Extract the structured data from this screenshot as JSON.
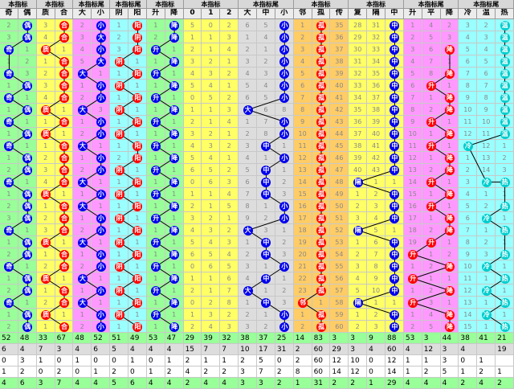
{
  "groups": [
    {
      "title": "本指标",
      "cols": [
        "奇",
        "偶"
      ]
    },
    {
      "title": "本指标",
      "cols": [
        "质",
        "合"
      ]
    },
    {
      "title": "本指标尾",
      "cols": [
        "大",
        "小"
      ]
    },
    {
      "title": "本指标尾",
      "cols": [
        "阴",
        "阳"
      ]
    },
    {
      "title": "本指标",
      "cols": [
        "升",
        "降"
      ]
    },
    {
      "title": "本指标",
      "cols": [
        "0",
        "1",
        "2"
      ]
    },
    {
      "title": "本指标尾",
      "cols": [
        "大",
        "中",
        "小"
      ]
    },
    {
      "title": "本指标",
      "cols": [
        "邻",
        "孤",
        "传"
      ]
    },
    {
      "title": "本指标",
      "cols": [
        "复",
        "隔",
        "中"
      ]
    },
    {
      "title": "本指标尾",
      "cols": [
        "升",
        "平",
        "降"
      ]
    },
    {
      "title": "本指标尾",
      "cols": [
        "冷",
        "温",
        "热"
      ]
    }
  ],
  "colors": {
    "green": "#99ff99",
    "yellow": "#ffff66",
    "pink": "#ff99ff",
    "cyan": "#99ffff",
    "gray": "#dddddd",
    "orange": "#ffcc66",
    "ball_blue": "#0000ee",
    "ball_red": "#ff0000",
    "ball_orange": "#ff6600",
    "ball_cyan": "#00cccc",
    "line": "#000000"
  },
  "footer_rows": [
    [
      "52",
      "48",
      "33",
      "67",
      "48",
      "52",
      "51",
      "49",
      "53",
      "47",
      "29",
      "39",
      "32",
      "38",
      "37",
      "25",
      "14",
      "83",
      "3",
      "3",
      "9",
      "88",
      "53",
      "3",
      "44",
      "38",
      "41",
      "21"
    ],
    [
      "6",
      "4",
      "7",
      "3",
      "4",
      "6",
      "5",
      "4",
      "4",
      "4",
      "15",
      "7",
      "7",
      "10",
      "17",
      "31",
      "2",
      "60",
      "29",
      "3",
      "4",
      "60",
      "4",
      "12",
      "3",
      "4",
      "",
      "19"
    ],
    [
      "0",
      "3",
      "1",
      "0",
      "1",
      "0",
      "0",
      "1",
      "0",
      "1",
      "2",
      "1",
      "1",
      "2",
      "5",
      "0",
      "2",
      "60",
      "12",
      "10",
      "0",
      "12",
      "1",
      "1",
      "3",
      "0",
      "1",
      ""
    ],
    [
      "1",
      "2",
      "0",
      "2",
      "0",
      "1",
      "2",
      "0",
      "1",
      "2",
      "4",
      "2",
      "2",
      "3",
      "7",
      "2",
      "8",
      "60",
      "14",
      "12",
      "0",
      "14",
      "1",
      "2",
      "5",
      "1",
      "2",
      "1"
    ],
    [
      "4",
      "6",
      "3",
      "7",
      "4",
      "4",
      "5",
      "6",
      "4",
      "4",
      "2",
      "4",
      "4",
      "3",
      "3",
      "2",
      "1",
      "31",
      "2",
      "2",
      "1",
      "29",
      "4",
      "4",
      "4",
      "2",
      "4",
      "2"
    ]
  ],
  "rows": [
    {
      "v": [
        "2",
        "偶",
        "3",
        "合",
        "2",
        "小",
        "1",
        "阳",
        "1",
        "降",
        "5",
        "0",
        "2",
        "6",
        "5",
        "小",
        "1",
        "孤",
        "35",
        "28",
        "31",
        "中",
        "1",
        "4",
        "2",
        "3",
        "2",
        "温"
      ]
    },
    {
      "v": [
        "3",
        "偶",
        "4",
        "合",
        "3",
        "大",
        "2",
        "阴",
        "2",
        "降",
        "1",
        "1",
        "3",
        "1",
        "4",
        "小",
        "2",
        "孤",
        "36",
        "29",
        "32",
        "中",
        "2",
        "5",
        "3",
        "4",
        "3",
        "温"
      ]
    },
    {
      "v": [
        "奇",
        "1",
        "质",
        "1",
        "4",
        "小",
        "3",
        "阳",
        "升",
        "1",
        "2",
        "1",
        "4",
        "2",
        "1",
        "小",
        "3",
        "孤",
        "37",
        "30",
        "33",
        "中",
        "3",
        "6",
        "降",
        "5",
        "4",
        "温"
      ]
    },
    {
      "v": [
        "1",
        "2",
        "1",
        "合",
        "5",
        "大",
        "阴",
        "1",
        "1",
        "降",
        "3",
        "2",
        "1",
        "3",
        "2",
        "小",
        "4",
        "孤",
        "38",
        "31",
        "34",
        "中",
        "4",
        "7",
        "1",
        "6",
        "5",
        "温"
      ]
    },
    {
      "v": [
        "奇",
        "3",
        "2",
        "合",
        "大",
        "1",
        "1",
        "阳",
        "升",
        "1",
        "4",
        "3",
        "2",
        "4",
        "3",
        "小",
        "5",
        "孤",
        "39",
        "32",
        "35",
        "中",
        "5",
        "8",
        "降",
        "7",
        "6",
        "温"
      ]
    },
    {
      "v": [
        "1",
        "偶",
        "3",
        "合",
        "1",
        "小",
        "阴",
        "1",
        "1",
        "降",
        "5",
        "4",
        "1",
        "5",
        "4",
        "小",
        "6",
        "孤",
        "40",
        "33",
        "36",
        "中",
        "6",
        "升",
        "1",
        "8",
        "7",
        "温"
      ]
    },
    {
      "v": [
        "奇",
        "1",
        "4",
        "合",
        "2",
        "小",
        "1",
        "阳",
        "升",
        "1",
        "0",
        "5",
        "2",
        "6",
        "5",
        "小",
        "7",
        "孤",
        "41",
        "34",
        "37",
        "中",
        "7",
        "1",
        "降",
        "9",
        "8",
        "温"
      ]
    },
    {
      "v": [
        "1",
        "偶",
        "质",
        "1",
        "大",
        "3",
        "阴",
        "1",
        "1",
        "降",
        "1",
        "1",
        "3",
        "大",
        "6",
        "8",
        "8",
        "孤",
        "42",
        "35",
        "38",
        "中",
        "8",
        "2",
        "降",
        "10",
        "9",
        "温"
      ]
    },
    {
      "v": [
        "奇",
        "1",
        "1",
        "合",
        "1",
        "小",
        "1",
        "阳",
        "升",
        "1",
        "2",
        "1",
        "4",
        "1",
        "7",
        "小",
        "9",
        "孤",
        "43",
        "36",
        "39",
        "中",
        "9",
        "升",
        "1",
        "11",
        "10",
        "温"
      ]
    },
    {
      "v": [
        "1",
        "偶",
        "质",
        "1",
        "2",
        "小",
        "阴",
        "1",
        "1",
        "降",
        "3",
        "2",
        "1",
        "2",
        "8",
        "小",
        "10",
        "孤",
        "44",
        "37",
        "40",
        "中",
        "10",
        "1",
        "降",
        "12",
        "11",
        "温"
      ]
    },
    {
      "v": [
        "奇",
        "1",
        "1",
        "合",
        "大",
        "1",
        "1",
        "阳",
        "升",
        "1",
        "4",
        "3",
        "2",
        "3",
        "中",
        "1",
        "11",
        "孤",
        "45",
        "38",
        "41",
        "中",
        "11",
        "升",
        "1",
        "冷",
        "12",
        "1"
      ]
    },
    {
      "v": [
        "1",
        "偶",
        "2",
        "合",
        "1",
        "小",
        "2",
        "阳",
        "1",
        "降",
        "5",
        "4",
        "1",
        "4",
        "1",
        "小",
        "12",
        "孤",
        "46",
        "39",
        "42",
        "中",
        "12",
        "1",
        "降",
        "1",
        "13",
        "2"
      ]
    },
    {
      "v": [
        "2",
        "偶",
        "3",
        "合",
        "2",
        "小",
        "阴",
        "1",
        "升",
        "1",
        "6",
        "5",
        "2",
        "5",
        "中",
        "1",
        "13",
        "孤",
        "47",
        "40",
        "43",
        "中",
        "13",
        "2",
        "降",
        "2",
        "14",
        "3"
      ]
    },
    {
      "v": [
        "奇",
        "1",
        "4",
        "合",
        "大",
        "1",
        "1",
        "阳",
        "1",
        "降",
        "0",
        "6",
        "3",
        "6",
        "中",
        "2",
        "14",
        "孤",
        "48",
        "隔",
        "1",
        "1",
        "14",
        "升",
        "1",
        "3",
        "冷",
        "热"
      ]
    },
    {
      "v": [
        "1",
        "偶",
        "质",
        "1",
        "1",
        "小",
        "阴",
        "1",
        "升",
        "1",
        "1",
        "1",
        "4",
        "7",
        "中",
        "3",
        "15",
        "孤",
        "49",
        "1",
        "2",
        "中",
        "15",
        "1",
        "降",
        "4",
        "1",
        "1"
      ]
    },
    {
      "v": [
        "2",
        "偶",
        "1",
        "合",
        "大",
        "1",
        "1",
        "阳",
        "1",
        "降",
        "2",
        "1",
        "5",
        "8",
        "1",
        "小",
        "16",
        "孤",
        "50",
        "2",
        "3",
        "中",
        "16",
        "升",
        "1",
        "5",
        "2",
        "热"
      ]
    },
    {
      "v": [
        "3",
        "偶",
        "2",
        "合",
        "1",
        "小",
        "阴",
        "1",
        "升",
        "1",
        "3",
        "2",
        "1",
        "9",
        "2",
        "小",
        "17",
        "孤",
        "51",
        "3",
        "4",
        "中",
        "17",
        "1",
        "降",
        "6",
        "冷",
        "1"
      ]
    },
    {
      "v": [
        "奇",
        "1",
        "3",
        "合",
        "2",
        "小",
        "1",
        "阳",
        "1",
        "降",
        "4",
        "3",
        "2",
        "大",
        "3",
        "1",
        "18",
        "孤",
        "52",
        "隔",
        "5",
        "1",
        "18",
        "2",
        "降",
        "7",
        "1",
        "热"
      ]
    },
    {
      "v": [
        "1",
        "偶",
        "质",
        "1",
        "大",
        "1",
        "阴",
        "1",
        "升",
        "1",
        "5",
        "4",
        "3",
        "1",
        "中",
        "2",
        "19",
        "孤",
        "53",
        "1",
        "6",
        "中",
        "19",
        "升",
        "1",
        "8",
        "2",
        "1"
      ]
    },
    {
      "v": [
        "2",
        "偶",
        "1",
        "合",
        "1",
        "小",
        "1",
        "阳",
        "1",
        "降",
        "6",
        "5",
        "4",
        "2",
        "中",
        "3",
        "20",
        "孤",
        "54",
        "2",
        "7",
        "中",
        "升",
        "1",
        "2",
        "9",
        "3",
        "热"
      ]
    },
    {
      "v": [
        "奇",
        "1",
        "2",
        "合",
        "2",
        "小",
        "阴",
        "1",
        "升",
        "1",
        "0",
        "6",
        "5",
        "3",
        "1",
        "小",
        "21",
        "孤",
        "55",
        "3",
        "8",
        "中",
        "1",
        "2",
        "降",
        "10",
        "冷",
        "1"
      ]
    },
    {
      "v": [
        "1",
        "偶",
        "质",
        "1",
        "大",
        "1",
        "1",
        "阳",
        "1",
        "降",
        "1",
        "1",
        "6",
        "4",
        "中",
        "1",
        "22",
        "孤",
        "56",
        "4",
        "9",
        "中",
        "升",
        "1",
        "1",
        "11",
        "1",
        "热"
      ]
    },
    {
      "v": [
        "2",
        "偶",
        "1",
        "合",
        "1",
        "小",
        "阴",
        "1",
        "升",
        "1",
        "2",
        "1",
        "7",
        "大",
        "1",
        "2",
        "23",
        "孤",
        "57",
        "5",
        "10",
        "中",
        "1",
        "2",
        "降",
        "12",
        "冷",
        "1"
      ]
    },
    {
      "v": [
        "奇",
        "1",
        "2",
        "合",
        "大",
        "1",
        "1",
        "阳",
        "1",
        "降",
        "0",
        "2",
        "8",
        "1",
        "中",
        "3",
        "邻",
        "1",
        "58",
        "隔",
        "1",
        "1",
        "升",
        "3",
        "1",
        "13",
        "1",
        "热"
      ]
    },
    {
      "v": [
        "1",
        "偶",
        "质",
        "1",
        "1",
        "小",
        "阴",
        "1",
        "升",
        "1",
        "1",
        "3",
        "2",
        "2",
        "1",
        "小",
        "1",
        "孤",
        "59",
        "1",
        "2",
        "中",
        "1",
        "4",
        "降",
        "14",
        "冷",
        "1"
      ]
    },
    {
      "v": [
        "2",
        "偶",
        "1",
        "合",
        "2",
        "小",
        "1",
        "阳",
        "1",
        "降",
        "2",
        "4",
        "3",
        "3",
        "2",
        "小",
        "2",
        "孤",
        "60",
        "2",
        "3",
        "中",
        "2",
        "5",
        "降",
        "15",
        "1",
        "热"
      ]
    }
  ]
}
